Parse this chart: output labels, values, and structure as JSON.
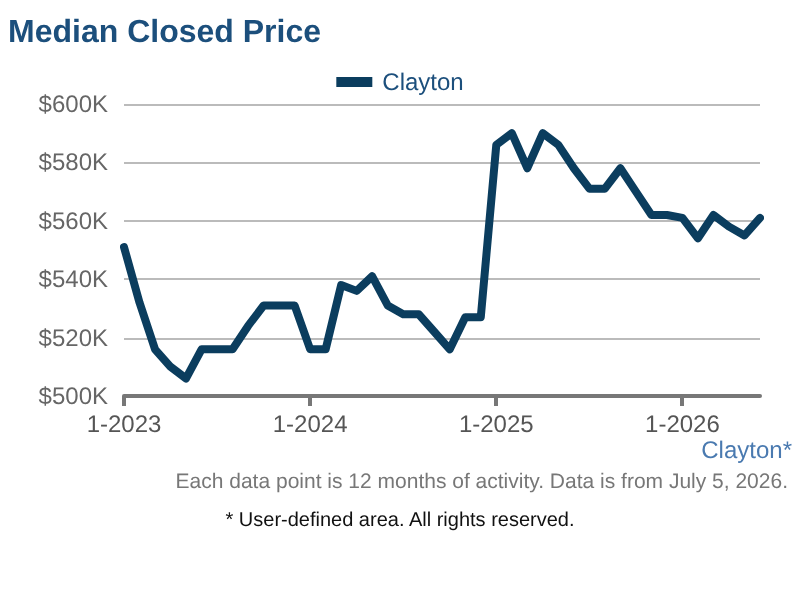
{
  "chart_data": {
    "type": "line",
    "title": "Median Closed Price",
    "categories": [
      "1-2023",
      null,
      null,
      null,
      null,
      null,
      null,
      null,
      null,
      null,
      null,
      null,
      "1-2024",
      null,
      null,
      null,
      null,
      null,
      null,
      null,
      null,
      null,
      null,
      null,
      "1-2025",
      null,
      null,
      null,
      null,
      null,
      null,
      null,
      null,
      null,
      null,
      null,
      "1-2026",
      null,
      null,
      null,
      null,
      null
    ],
    "series": [
      {
        "name": "Clayton",
        "color": "#0b3d5e",
        "values": [
          551000,
          532000,
          516000,
          510000,
          506000,
          516000,
          516000,
          516000,
          524000,
          531000,
          531000,
          531000,
          516000,
          516000,
          538000,
          536000,
          541000,
          531000,
          528000,
          528000,
          522000,
          516000,
          527000,
          527000,
          586000,
          590000,
          578000,
          590000,
          586000,
          578000,
          571000,
          571000,
          578000,
          570000,
          562000,
          562000,
          561000,
          554000,
          562000,
          558000,
          555000,
          561000
        ]
      }
    ],
    "ylim": [
      500000,
      600000
    ],
    "yticks": [
      {
        "value": 500000,
        "label": "$500K"
      },
      {
        "value": 520000,
        "label": "$520K"
      },
      {
        "value": 540000,
        "label": "$540K"
      },
      {
        "value": 560000,
        "label": "$560K"
      },
      {
        "value": 580000,
        "label": "$580K"
      },
      {
        "value": 600000,
        "label": "$600K"
      }
    ],
    "grid": "y",
    "legend": "top",
    "marker": "none",
    "line_style": "solid",
    "annotations": [
      "Clayton*",
      "Each data point is 12 months of activity. Data is from July 5, 2026.",
      "* User-defined area. All rights reserved."
    ]
  }
}
